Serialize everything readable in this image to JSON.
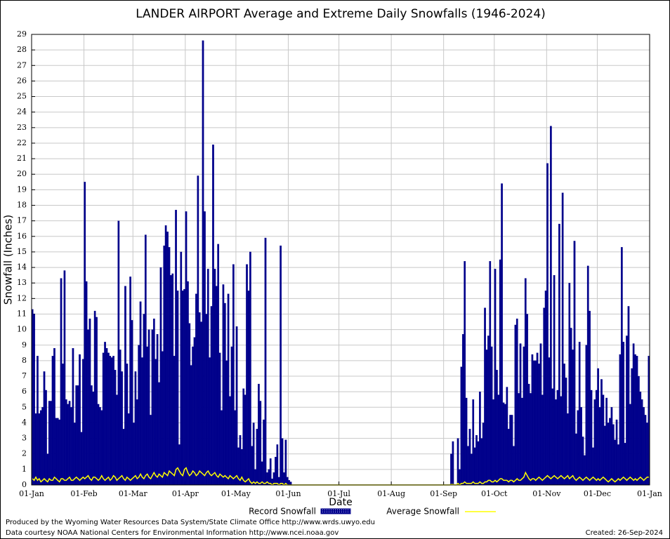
{
  "chart_data": {
    "type": "bar",
    "title": "LANDER AIRPORT Average and Extreme Daily Snowfalls (1946-2024)",
    "xlabel": "Date",
    "ylabel": "Snowfall (Inches)",
    "xlim": [
      0,
      366
    ],
    "xticks": [
      {
        "value": 0,
        "label": "01-Jan"
      },
      {
        "value": 31,
        "label": "01-Feb"
      },
      {
        "value": 60,
        "label": "01-Mar"
      },
      {
        "value": 91,
        "label": "01-Apr"
      },
      {
        "value": 121,
        "label": "01-May"
      },
      {
        "value": 152,
        "label": "01-Jun"
      },
      {
        "value": 182,
        "label": "01-Jul"
      },
      {
        "value": 213,
        "label": "01-Aug"
      },
      {
        "value": 244,
        "label": "01-Sep"
      },
      {
        "value": 274,
        "label": "01-Oct"
      },
      {
        "value": 305,
        "label": "01-Nov"
      },
      {
        "value": 335,
        "label": "01-Dec"
      },
      {
        "value": 366,
        "label": "01-Jan"
      }
    ],
    "ylim": [
      0,
      29
    ],
    "yticks": [
      0,
      1,
      2,
      3,
      4,
      5,
      6,
      7,
      8,
      9,
      10,
      11,
      12,
      13,
      14,
      15,
      16,
      17,
      18,
      19,
      20,
      21,
      22,
      23,
      24,
      25,
      26,
      27,
      28,
      29
    ],
    "grid": true,
    "series": [
      {
        "name": "Record Snowfall",
        "color": "#00008b",
        "values": [
          11.3,
          11,
          4.6,
          8.3,
          4.6,
          4.8,
          5,
          7.3,
          6.1,
          2,
          5.4,
          5.4,
          8.3,
          8.8,
          4.3,
          4.3,
          4.2,
          13.3,
          7.8,
          13.8,
          5.5,
          5.2,
          5.4,
          5,
          8.8,
          4,
          6.4,
          6.4,
          8.4,
          3.4,
          8.1,
          19.5,
          13.1,
          10,
          10.7,
          6.4,
          6,
          11.2,
          10.8,
          5.2,
          5,
          4.8,
          8.5,
          9.2,
          8.8,
          8.5,
          8.3,
          8.2,
          8.3,
          7.4,
          5.8,
          17,
          8.7,
          7.3,
          3.6,
          12.8,
          7.8,
          4.6,
          13.4,
          10.6,
          4,
          7.3,
          5.5,
          9,
          11.8,
          8.2,
          11,
          16.1,
          8.9,
          10,
          4.5,
          10,
          10.7,
          8.1,
          9.7,
          6.6,
          14,
          8.6,
          15.4,
          16.7,
          16.3,
          15.3,
          13.5,
          13.6,
          8.3,
          17.7,
          12.5,
          2.6,
          15,
          12.5,
          12.6,
          17.6,
          13.1,
          10.4,
          7.7,
          8.9,
          9.5,
          12.3,
          19.9,
          11.1,
          10.5,
          28.6,
          17.6,
          11,
          13.9,
          8.2,
          11.5,
          21.9,
          13.9,
          12.8,
          15.5,
          8.5,
          4.8,
          12.9,
          11.7,
          8,
          12.3,
          5.7,
          8.9,
          14.2,
          4.8,
          10.2,
          2.4,
          3.2,
          2.3,
          6.2,
          5.8,
          14.2,
          12.5,
          15,
          2.5,
          4,
          1,
          3.6,
          6.5,
          5.4,
          1.5,
          4.2,
          15.9,
          0.8,
          1,
          1.7,
          0.4,
          0.8,
          1.8,
          2.6,
          0.5,
          15.4,
          3,
          0.8,
          2.9,
          0.5,
          0.3,
          0.2,
          0,
          0,
          0,
          0,
          0,
          0,
          0,
          0,
          0,
          0,
          0,
          0,
          0,
          0,
          0,
          0,
          0,
          0,
          0,
          0,
          0,
          0,
          0,
          0,
          0,
          0,
          0,
          0,
          0,
          0,
          0,
          0,
          0,
          0,
          0,
          0,
          0,
          0,
          0,
          0,
          0,
          0,
          0,
          0,
          0,
          0,
          0,
          0,
          0,
          0,
          0,
          0,
          0,
          0,
          0,
          0,
          0,
          0,
          0,
          0,
          0,
          0,
          0,
          0,
          0,
          0,
          0,
          0,
          0,
          0,
          0,
          0,
          0,
          0,
          0,
          0,
          0,
          0,
          0,
          0,
          0,
          0,
          0,
          0,
          0,
          0,
          0,
          0,
          0,
          0,
          0,
          0,
          0,
          0,
          2,
          2.8,
          0,
          0,
          3,
          1,
          7.6,
          9.7,
          14.4,
          5.6,
          2.5,
          3.6,
          2,
          5.5,
          2.4,
          3.2,
          2.8,
          6,
          3,
          4,
          11.4,
          8.7,
          9.6,
          14.4,
          8.9,
          5.5,
          13.9,
          7.4,
          5.8,
          14.5,
          19.4,
          5.3,
          5.2,
          6.3,
          3.6,
          4.5,
          4.5,
          2.5,
          10.3,
          10.7,
          5.9,
          9.1,
          5.6,
          8.9,
          13.3,
          11,
          6.5,
          5.9,
          8.4,
          8,
          8,
          8.5,
          7.8,
          9.1,
          5.8,
          11.4,
          12.5,
          20.7,
          8.2,
          23.1,
          6.2,
          13.5,
          5.5,
          6.1,
          16.8,
          5.7,
          18.8,
          7.8,
          6.9,
          4.6,
          13,
          10.1,
          8.7,
          15.7,
          3.3,
          4.8,
          9.2,
          5,
          3.1,
          1.9,
          9,
          14.1,
          11.2,
          6.1,
          2.4,
          5.5,
          6.1,
          7.5,
          5,
          6.8,
          5.8,
          3.8,
          5.6,
          4,
          4.3,
          5,
          3.9,
          2.9,
          4.2,
          2.6,
          8.4,
          15.3,
          9.2,
          2.7,
          9.6,
          11.5,
          5.2,
          7.5,
          9.1,
          8.4,
          8.3,
          7,
          6,
          5.5,
          5,
          4.5,
          4,
          8.3
        ]
      },
      {
        "name": "Average Snowfall",
        "type": "line",
        "color": "#ffff00",
        "values": [
          0.4,
          0.3,
          0.5,
          0.3,
          0.4,
          0.2,
          0.3,
          0.4,
          0.3,
          0.2,
          0.4,
          0.3,
          0.3,
          0.5,
          0.4,
          0.3,
          0.2,
          0.4,
          0.4,
          0.3,
          0.3,
          0.4,
          0.5,
          0.3,
          0.3,
          0.4,
          0.5,
          0.4,
          0.3,
          0.4,
          0.5,
          0.4,
          0.5,
          0.6,
          0.4,
          0.3,
          0.5,
          0.5,
          0.4,
          0.3,
          0.4,
          0.6,
          0.4,
          0.3,
          0.4,
          0.5,
          0.3,
          0.4,
          0.6,
          0.5,
          0.3,
          0.4,
          0.5,
          0.6,
          0.4,
          0.3,
          0.5,
          0.4,
          0.3,
          0.4,
          0.5,
          0.6,
          0.4,
          0.5,
          0.7,
          0.5,
          0.4,
          0.6,
          0.7,
          0.5,
          0.4,
          0.6,
          0.8,
          0.6,
          0.5,
          0.7,
          0.6,
          0.5,
          0.8,
          0.7,
          0.6,
          0.9,
          0.8,
          0.7,
          0.6,
          1.0,
          1.1,
          0.9,
          0.7,
          0.6,
          1.0,
          1.1,
          0.8,
          0.6,
          0.7,
          0.9,
          0.8,
          0.6,
          0.7,
          0.9,
          0.8,
          0.7,
          0.6,
          0.8,
          0.9,
          0.7,
          0.6,
          0.7,
          0.8,
          0.6,
          0.5,
          0.7,
          0.6,
          0.5,
          0.6,
          0.5,
          0.4,
          0.6,
          0.5,
          0.4,
          0.5,
          0.6,
          0.4,
          0.3,
          0.5,
          0.3,
          0.2,
          0.3,
          0.4,
          0.2,
          0.1,
          0.2,
          0.1,
          0.2,
          0.1,
          0.1,
          0.2,
          0.1,
          0.1,
          0.2,
          0.1,
          0.1,
          0,
          0.1,
          0.1,
          0.1,
          0,
          0.1,
          0.1,
          0,
          0.1,
          0,
          0,
          0,
          0,
          0,
          0,
          0,
          0,
          0,
          0,
          0,
          0,
          0,
          0,
          0,
          0,
          0,
          0,
          0,
          0,
          0,
          0,
          0,
          0,
          0,
          0,
          0,
          0,
          0,
          0,
          0,
          0,
          0,
          0,
          0,
          0,
          0,
          0,
          0,
          0,
          0,
          0,
          0,
          0,
          0,
          0,
          0,
          0,
          0,
          0,
          0,
          0,
          0,
          0,
          0,
          0,
          0,
          0,
          0,
          0,
          0,
          0,
          0,
          0,
          0,
          0,
          0,
          0,
          0,
          0,
          0,
          0,
          0,
          0,
          0,
          0,
          0,
          0,
          0,
          0,
          0,
          0,
          0,
          0,
          0,
          0,
          0,
          0,
          0,
          0,
          0,
          0,
          0,
          0,
          0,
          0,
          0,
          0.03,
          0.03,
          0,
          0,
          0.1,
          0,
          0.1,
          0.1,
          0.2,
          0.1,
          0.1,
          0.1,
          0.1,
          0.2,
          0.1,
          0.1,
          0.1,
          0.2,
          0.1,
          0.1,
          0.2,
          0.2,
          0.3,
          0.3,
          0.2,
          0.2,
          0.3,
          0.2,
          0.3,
          0.4,
          0.4,
          0.3,
          0.3,
          0.3,
          0.2,
          0.3,
          0.3,
          0.2,
          0.3,
          0.4,
          0.3,
          0.3,
          0.4,
          0.5,
          0.8,
          0.6,
          0.4,
          0.3,
          0.4,
          0.4,
          0.3,
          0.4,
          0.5,
          0.4,
          0.3,
          0.4,
          0.5,
          0.6,
          0.5,
          0.4,
          0.5,
          0.6,
          0.5,
          0.4,
          0.5,
          0.6,
          0.5,
          0.4,
          0.5,
          0.6,
          0.4,
          0.5,
          0.6,
          0.4,
          0.3,
          0.4,
          0.5,
          0.4,
          0.3,
          0.4,
          0.5,
          0.4,
          0.3,
          0.4,
          0.5,
          0.4,
          0.3,
          0.4,
          0.3,
          0.4,
          0.5,
          0.4,
          0.3,
          0.2,
          0.3,
          0.4,
          0.3,
          0.2,
          0.3,
          0.4,
          0.3,
          0.4,
          0.5,
          0.4,
          0.3,
          0.4,
          0.5,
          0.4,
          0.3,
          0.4,
          0.3,
          0.4,
          0.5,
          0.4,
          0.3,
          0.4,
          0.5,
          0.5
        ]
      }
    ],
    "footer_left": [
      "Produced by the Wyoming Water Resources Data System/State Climate Office http://www.wrds.uwyo.edu",
      "Data courtesy NOAA National Centers for Environmental Information http://www.ncei.noaa.gov"
    ],
    "footer_right": "Created:  26-Sep-2024"
  }
}
